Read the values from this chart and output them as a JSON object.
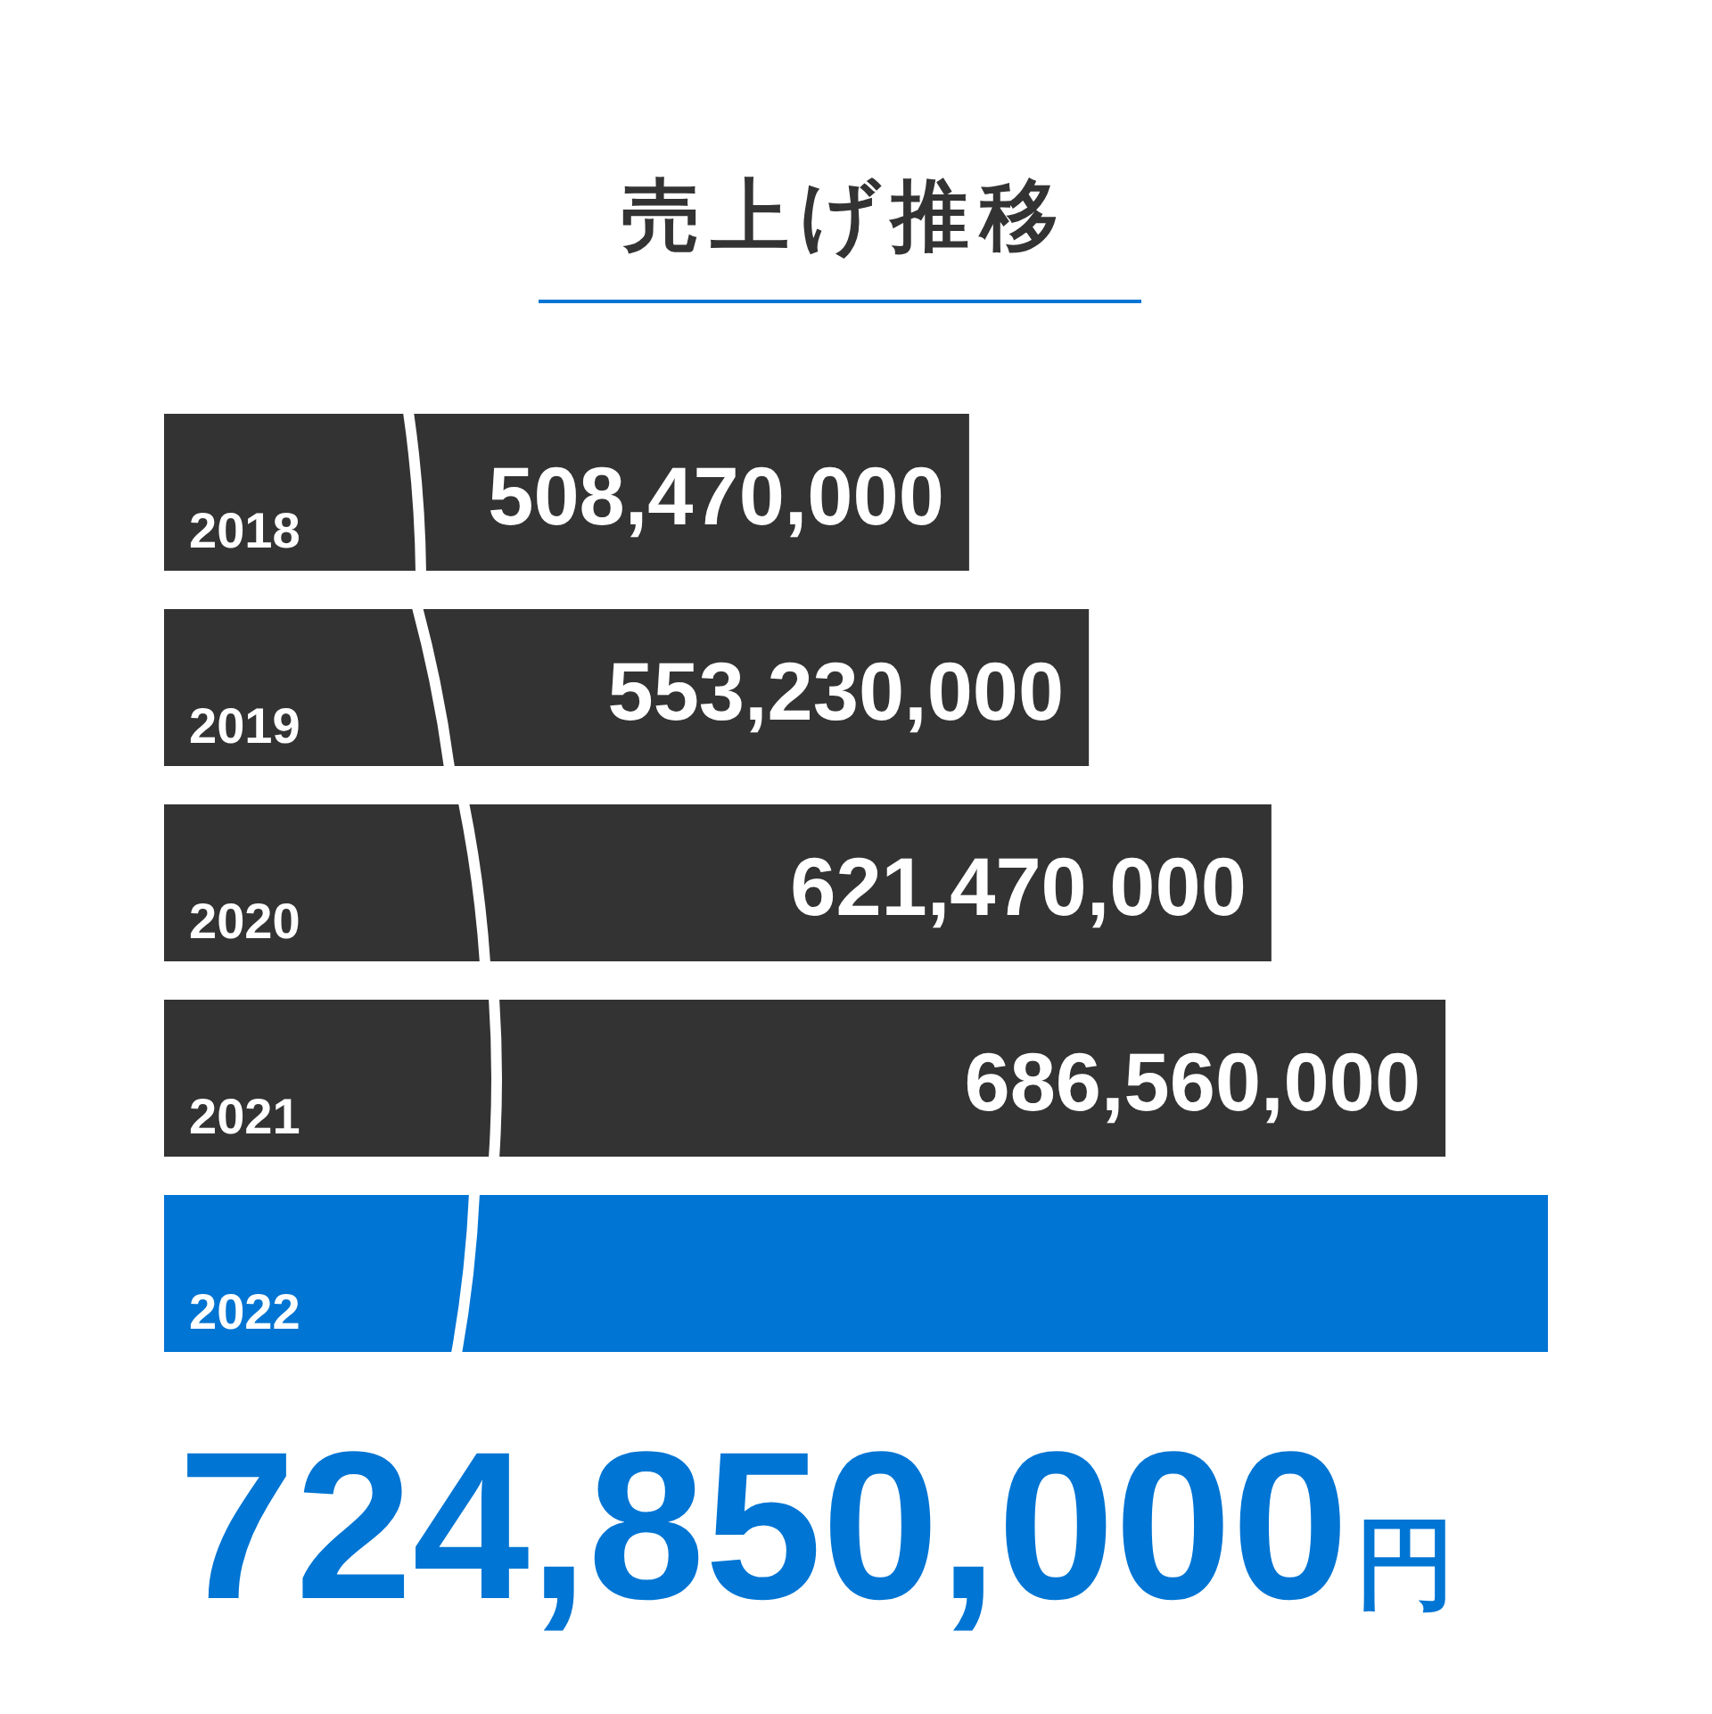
{
  "chart_data": {
    "type": "bar",
    "orientation": "horizontal",
    "title": "売上げ推移",
    "categories": [
      "2018",
      "2019",
      "2020",
      "2021",
      "2022"
    ],
    "values": [
      508470000,
      553230000,
      621470000,
      686560000,
      724850000
    ],
    "colors": [
      "#333333",
      "#333333",
      "#333333",
      "#333333",
      "#0075d4"
    ],
    "value_labels": [
      "508,470,000",
      "553,230,000",
      "621,470,000",
      "686,560,000",
      "724,850,000円"
    ],
    "xlim": [
      207500000,
      724850000
    ]
  }
}
